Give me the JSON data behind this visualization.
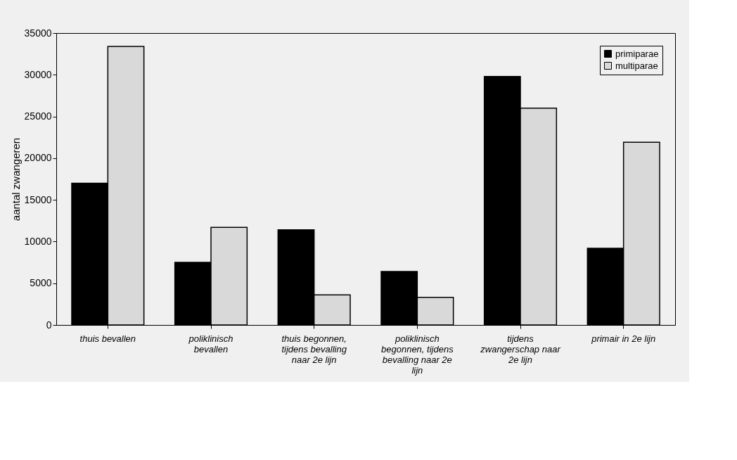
{
  "chart_data": {
    "type": "bar",
    "ylabel": "aantal zwangeren",
    "categories": [
      "thuis bevallen",
      "poliklinisch bevallen",
      "thuis begonnen, tijdens bevalling naar 2e lijn",
      "poliklinisch begonnen, tijdens bevalling naar 2e lijn",
      "tijdens zwangerschap naar 2e lijn",
      "primair in 2e lijn"
    ],
    "series": [
      {
        "name": "primiparae",
        "color": "#000000",
        "values": [
          17000,
          7500,
          11400,
          6400,
          29800,
          9200
        ]
      },
      {
        "name": "multiparae",
        "color": "#d9d9d9",
        "values": [
          33400,
          11700,
          3600,
          3300,
          26000,
          21900
        ]
      }
    ],
    "ylim": [
      0,
      35000
    ],
    "yticks": [
      0,
      5000,
      10000,
      15000,
      20000,
      25000,
      30000,
      35000
    ],
    "grid": false,
    "legend": "top right"
  }
}
